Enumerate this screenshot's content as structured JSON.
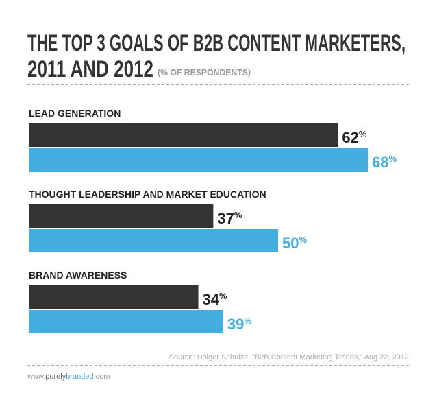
{
  "chart_data": {
    "type": "bar",
    "orientation": "horizontal",
    "title": [
      "THE TOP 3 GOALS OF B2B CONTENT MARKETERS,",
      "2011 AND 2012"
    ],
    "subtitle": "(% OF RESPONDENTS)",
    "categories": [
      "LEAD GENERATION",
      "THOUGHT LEADERSHIP AND MARKET EDUCATION",
      "BRAND AWARENESS"
    ],
    "series": [
      {
        "color": "#333333",
        "values": [
          62,
          37,
          34
        ],
        "value_labels": [
          "62%",
          "37%",
          "34%"
        ]
      },
      {
        "color": "#45aee0",
        "values": [
          68,
          50,
          39
        ],
        "value_labels": [
          "68%",
          "50%",
          "39%"
        ]
      }
    ],
    "source": "Source: Holger Schulze, “B2B Content Marketing Trends,” Aug 22, 2012",
    "footer": [
      "www.",
      "purely",
      "branded",
      ".com"
    ]
  }
}
